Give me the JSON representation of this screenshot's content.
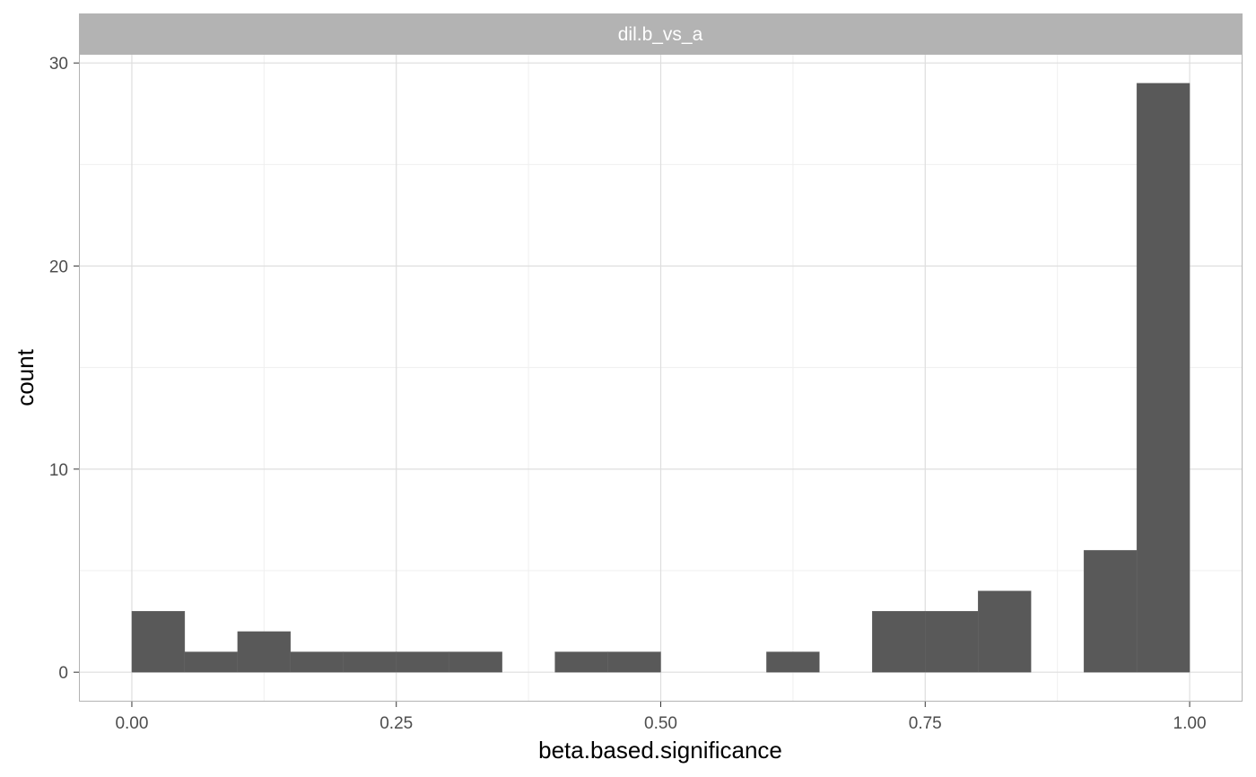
{
  "chart_data": {
    "type": "bar",
    "subtype": "histogram",
    "facet_label": "dil.b_vs_a",
    "xlabel": "beta.based.significance",
    "ylabel": "count",
    "xlim": [
      -0.05,
      1.05
    ],
    "ylim": [
      -1.45,
      30.45
    ],
    "x_ticks": [
      0.0,
      0.25,
      0.5,
      0.75,
      1.0
    ],
    "x_tick_labels": [
      "0.00",
      "0.25",
      "0.50",
      "0.75",
      "1.00"
    ],
    "y_ticks": [
      0,
      10,
      20,
      30
    ],
    "y_tick_labels": [
      "0",
      "10",
      "20",
      "30"
    ],
    "grid": true,
    "bin_width": 0.05,
    "bins": [
      {
        "start": 0.0,
        "end": 0.05,
        "count": 3
      },
      {
        "start": 0.05,
        "end": 0.1,
        "count": 1
      },
      {
        "start": 0.1,
        "end": 0.15,
        "count": 2
      },
      {
        "start": 0.15,
        "end": 0.2,
        "count": 1
      },
      {
        "start": 0.2,
        "end": 0.25,
        "count": 1
      },
      {
        "start": 0.25,
        "end": 0.3,
        "count": 1
      },
      {
        "start": 0.3,
        "end": 0.35,
        "count": 1
      },
      {
        "start": 0.35,
        "end": 0.4,
        "count": 0
      },
      {
        "start": 0.4,
        "end": 0.45,
        "count": 1
      },
      {
        "start": 0.45,
        "end": 0.5,
        "count": 1
      },
      {
        "start": 0.5,
        "end": 0.55,
        "count": 0
      },
      {
        "start": 0.55,
        "end": 0.6,
        "count": 0
      },
      {
        "start": 0.6,
        "end": 0.65,
        "count": 1
      },
      {
        "start": 0.65,
        "end": 0.7,
        "count": 0
      },
      {
        "start": 0.7,
        "end": 0.75,
        "count": 3
      },
      {
        "start": 0.75,
        "end": 0.8,
        "count": 3
      },
      {
        "start": 0.8,
        "end": 0.85,
        "count": 4
      },
      {
        "start": 0.85,
        "end": 0.9,
        "count": 0
      },
      {
        "start": 0.9,
        "end": 0.95,
        "count": 6
      },
      {
        "start": 0.95,
        "end": 1.0,
        "count": 29
      }
    ],
    "colors": {
      "bar_fill": "#595959",
      "strip_fill": "#b3b3b3",
      "panel_border": "#b3b3b3",
      "grid_major": "#dedede",
      "grid_minor": "#efefef"
    }
  }
}
